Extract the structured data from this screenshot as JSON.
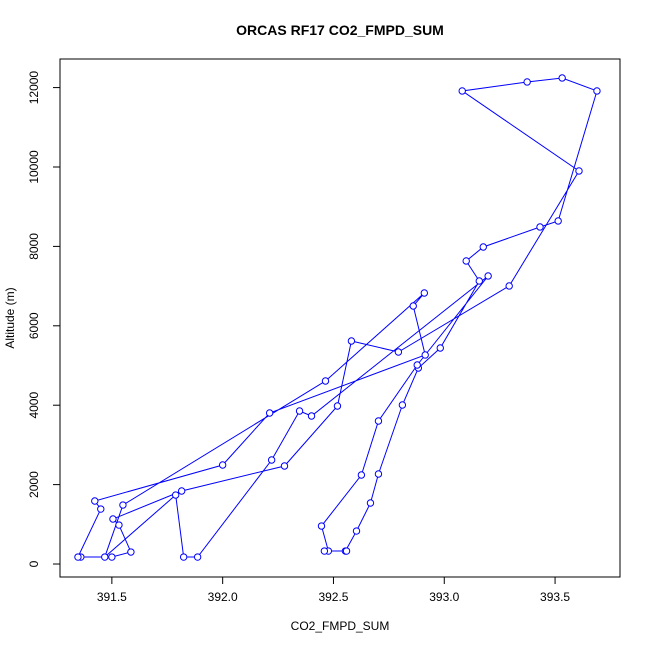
{
  "chart_data": {
    "type": "line",
    "title": "ORCAS RF17 CO2_FMPD_SUM",
    "x_label": "CO2_FMPD_SUM",
    "y_label": "Altitude (m)",
    "color": "#0000ff",
    "markers": true,
    "x": [
      392.554,
      392.604,
      392.667,
      392.703,
      392.811,
      392.883,
      392.982,
      393.158,
      393.099,
      393.176,
      393.432,
      393.514,
      393.689,
      393.532,
      393.374,
      393.081,
      393.608,
      393.293,
      392.793,
      392.581,
      392.518,
      392.279,
      391.815,
      391.505,
      391.532,
      391.586,
      391.5,
      391.36,
      391.347,
      391.45,
      391.423,
      392.0,
      392.212,
      392.914,
      392.86,
      392.91,
      392.464,
      391.55,
      391.468,
      391.788,
      391.824,
      391.887,
      392.221,
      392.347,
      392.401,
      393.198,
      392.878,
      392.703,
      392.626,
      392.446,
      392.477,
      392.459,
      392.559
    ],
    "values": [
      327,
      831,
      1537,
      2267,
      4005,
      4937,
      5441,
      7129,
      7633,
      7985,
      8489,
      8640,
      11915,
      12242,
      12142,
      11915,
      9900,
      7003,
      5340,
      5617,
      3980,
      2469,
      1839,
      1134,
      982,
      302,
      176,
      176,
      176,
      1385,
      1587,
      2494,
      3804,
      5265,
      6499,
      6826,
      4610,
      1486,
      176,
      1738,
      176,
      176,
      2620,
      3854,
      3728,
      7255,
      5013,
      3602,
      2242,
      957,
      327,
      327,
      327
    ],
    "xlim": [
      391.266,
      393.793
    ],
    "ylim": [
      -327,
      12720
    ],
    "xticks": [
      391.5,
      {
        "value": 392.0,
        "label": "392.0"
      },
      392.5,
      {
        "value": 393.0,
        "label": "393.0"
      },
      393.5
    ],
    "yticks": [
      0,
      2000,
      4000,
      6000,
      8000,
      10000,
      12000
    ]
  }
}
